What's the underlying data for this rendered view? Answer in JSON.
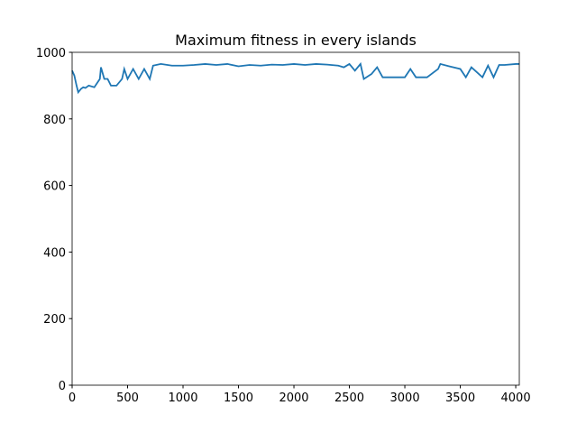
{
  "chart_data": {
    "type": "line",
    "title": "Maximum fitness in every islands",
    "x": [
      0,
      20,
      40,
      55,
      80,
      100,
      120,
      150,
      200,
      250,
      260,
      290,
      320,
      350,
      400,
      450,
      470,
      500,
      550,
      600,
      650,
      700,
      730,
      800,
      900,
      1000,
      1100,
      1200,
      1300,
      1400,
      1500,
      1600,
      1700,
      1800,
      1900,
      2000,
      2100,
      2200,
      2300,
      2400,
      2450,
      2500,
      2550,
      2600,
      2630,
      2700,
      2750,
      2800,
      2900,
      3000,
      3050,
      3100,
      3200,
      3300,
      3320,
      3400,
      3500,
      3550,
      3600,
      3700,
      3750,
      3800,
      3850,
      3900,
      4000,
      4032
    ],
    "values": [
      945,
      930,
      900,
      880,
      890,
      895,
      893,
      900,
      895,
      920,
      955,
      920,
      920,
      900,
      900,
      920,
      950,
      920,
      950,
      920,
      950,
      920,
      960,
      965,
      960,
      960,
      962,
      965,
      962,
      965,
      958,
      962,
      960,
      963,
      962,
      965,
      962,
      965,
      963,
      960,
      955,
      965,
      945,
      965,
      920,
      935,
      955,
      925,
      925,
      925,
      950,
      925,
      925,
      950,
      965,
      958,
      950,
      925,
      955,
      925,
      960,
      925,
      962,
      962,
      965,
      965
    ],
    "color": "#1f77b4",
    "xlim": [
      0,
      4032
    ],
    "xticks": [
      0,
      500,
      1000,
      1500,
      2000,
      2500,
      3000,
      3500,
      4000
    ],
    "ylim": [
      0,
      1000
    ],
    "yticks": [
      0,
      200,
      400,
      600,
      800,
      1000
    ]
  }
}
